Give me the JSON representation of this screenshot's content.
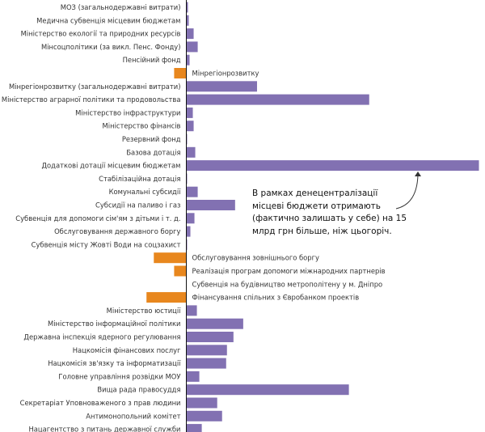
{
  "chart_data": {
    "type": "bar",
    "orientation": "horizontal-diverging",
    "colors": {
      "positive": "#8271b2",
      "negative": "#e8871e",
      "axis": "#111111"
    },
    "units": "",
    "categories": [
      "МОЗ (загальнодержавні витрати)",
      "Медична субвенція місцевим бюджетам",
      "Міністерство екології та природних ресурсів",
      "Мінсоцполітики (за викл. Пенс. Фонду)",
      "Пенсійний фонд",
      "Мінрегіонрозвитку",
      "Мінрегіонрозвитку (загальнодержавні витрати)",
      "Міністерство аграрної політики та продовольства",
      "Міністерство інфраструктури",
      "Міністерство фінансів",
      "Резервний фонд",
      "Базова дотація",
      "Додаткові дотації місцевим бюджетам",
      "Стабілізаційна дотація",
      "Комунальні субсидії",
      "Субсидії на паливо і газ",
      "Субвенція для допомоги сім'ям з дітьми і т. д.",
      "Обслуговування державного боргу",
      "Субвенція місту Жовті Води на соцзахист",
      "Обслуговування зовнішнього боргу",
      "Реалізація програм допомоги міжнародних партнерів",
      "Субвенція на будівництво метрополітену у м. Дніпро",
      "Фінансування спільних з Євробанком проектів",
      "Міністерство юстиції",
      "Міністерство інформаційної політики",
      "Державна інспекція ядерного регулювання",
      "Нацкомісія фінансових послуг",
      "Нацкомісія зв'язку та інформатизації",
      "Головне управління розвідки МОУ",
      "Вища рада правосуддя",
      "Секретаріат Уповноваженого з прав людини",
      "Антимонопольний комітет",
      "Нацагентство з питань державної служби"
    ],
    "values": [
      2,
      3,
      9,
      14,
      4,
      -15,
      87,
      225,
      8,
      9,
      1,
      11,
      360,
      1,
      14,
      60,
      10,
      5,
      1,
      -40,
      -15,
      0,
      -49,
      13,
      70,
      58,
      50,
      49,
      16,
      200,
      38,
      44,
      19
    ],
    "annotations": [
      {
        "lines": [
          "В рамках денецентралізації",
          "місцеві бюджети отримають",
          "(фактично залишать у себе) на 15",
          "млрд грн більше, ніж цьогоріч."
        ],
        "points_to": "Додаткові дотації місцевим бюджетам"
      }
    ]
  }
}
